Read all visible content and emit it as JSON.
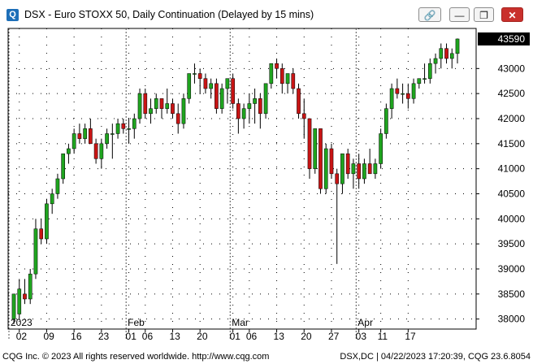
{
  "window": {
    "app_icon_glyph": "Q",
    "title": "DSX - Euro STOXX 50, Daily Continuation (Delayed by 15 mins)",
    "buttons": [
      "link-icon",
      "minimize-icon",
      "restore-icon",
      "close-icon"
    ]
  },
  "colors": {
    "up": "#1fa41f",
    "down": "#c81414",
    "wick": "#000000",
    "price_box": "#000000",
    "price_text": "#ffffff",
    "grid": "#000000"
  },
  "chart_data": {
    "type": "candlestick",
    "instrument": "DSX - Euro STOXX 50, Daily Continuation",
    "last_price_label": "43590",
    "ylim": [
      37800,
      43800
    ],
    "y_ticks": [
      "38000",
      "38500",
      "39000",
      "39500",
      "40000",
      "40500",
      "41000",
      "41500",
      "42000",
      "42500",
      "43000"
    ],
    "x_tick_labels": [
      "02",
      "09",
      "16",
      "23",
      "01",
      "06",
      "13",
      "20",
      "01",
      "06",
      "13",
      "20",
      "27",
      "03",
      "11",
      "17"
    ],
    "month_labels": [
      "2023",
      "Feb",
      "Mar",
      "Apr"
    ],
    "candles": [
      {
        "o": 38000,
        "h": 38500,
        "l": 37900,
        "c": 38500
      },
      {
        "o": 38100,
        "h": 38800,
        "l": 38000,
        "c": 38600
      },
      {
        "o": 38500,
        "h": 38800,
        "l": 38300,
        "c": 38400
      },
      {
        "o": 38400,
        "h": 39000,
        "l": 38300,
        "c": 38900
      },
      {
        "o": 38900,
        "h": 40000,
        "l": 38800,
        "c": 39800
      },
      {
        "o": 39800,
        "h": 40000,
        "l": 39500,
        "c": 39600
      },
      {
        "o": 39600,
        "h": 40400,
        "l": 39500,
        "c": 40300
      },
      {
        "o": 40300,
        "h": 40600,
        "l": 40100,
        "c": 40500
      },
      {
        "o": 40500,
        "h": 40900,
        "l": 40400,
        "c": 40800
      },
      {
        "o": 40800,
        "h": 41300,
        "l": 40700,
        "c": 41300
      },
      {
        "o": 41300,
        "h": 41500,
        "l": 41100,
        "c": 41400
      },
      {
        "o": 41400,
        "h": 41800,
        "l": 41300,
        "c": 41700
      },
      {
        "o": 41700,
        "h": 41900,
        "l": 41500,
        "c": 41600
      },
      {
        "o": 41600,
        "h": 41900,
        "l": 41500,
        "c": 41800
      },
      {
        "o": 41800,
        "h": 42000,
        "l": 41500,
        "c": 41500
      },
      {
        "o": 41500,
        "h": 41600,
        "l": 41100,
        "c": 41200
      },
      {
        "o": 41200,
        "h": 41600,
        "l": 41000,
        "c": 41500
      },
      {
        "o": 41500,
        "h": 41800,
        "l": 41400,
        "c": 41700
      },
      {
        "o": 41700,
        "h": 41900,
        "l": 41200,
        "c": 41700
      },
      {
        "o": 41700,
        "h": 42000,
        "l": 41600,
        "c": 41900
      },
      {
        "o": 41900,
        "h": 42000,
        "l": 41700,
        "c": 41800
      },
      {
        "o": 41800,
        "h": 42000,
        "l": 41500,
        "c": 41800
      },
      {
        "o": 41800,
        "h": 42100,
        "l": 41600,
        "c": 42000
      },
      {
        "o": 42000,
        "h": 42600,
        "l": 41900,
        "c": 42500
      },
      {
        "o": 42500,
        "h": 42600,
        "l": 42000,
        "c": 42100
      },
      {
        "o": 42100,
        "h": 42400,
        "l": 41900,
        "c": 42200
      },
      {
        "o": 42200,
        "h": 42500,
        "l": 42100,
        "c": 42400
      },
      {
        "o": 42400,
        "h": 42400,
        "l": 42000,
        "c": 42200
      },
      {
        "o": 42200,
        "h": 42600,
        "l": 42100,
        "c": 42300
      },
      {
        "o": 42300,
        "h": 42400,
        "l": 42000,
        "c": 42100
      },
      {
        "o": 42100,
        "h": 42300,
        "l": 41700,
        "c": 41900
      },
      {
        "o": 41900,
        "h": 42500,
        "l": 41800,
        "c": 42400
      },
      {
        "o": 42400,
        "h": 42900,
        "l": 42300,
        "c": 42900
      },
      {
        "o": 42900,
        "h": 43100,
        "l": 42700,
        "c": 42900
      },
      {
        "o": 42900,
        "h": 43000,
        "l": 42500,
        "c": 42800
      },
      {
        "o": 42800,
        "h": 42900,
        "l": 42500,
        "c": 42600
      },
      {
        "o": 42600,
        "h": 42800,
        "l": 42400,
        "c": 42700
      },
      {
        "o": 42700,
        "h": 42800,
        "l": 42100,
        "c": 42200
      },
      {
        "o": 42200,
        "h": 42700,
        "l": 42100,
        "c": 42600
      },
      {
        "o": 42600,
        "h": 42800,
        "l": 42300,
        "c": 42800
      },
      {
        "o": 42800,
        "h": 42900,
        "l": 42200,
        "c": 42300
      },
      {
        "o": 42300,
        "h": 42400,
        "l": 41700,
        "c": 42000
      },
      {
        "o": 42000,
        "h": 42300,
        "l": 41800,
        "c": 42200
      },
      {
        "o": 42200,
        "h": 42500,
        "l": 41900,
        "c": 42300
      },
      {
        "o": 42300,
        "h": 42600,
        "l": 41900,
        "c": 42400
      },
      {
        "o": 42400,
        "h": 42500,
        "l": 41800,
        "c": 42100
      },
      {
        "o": 42100,
        "h": 42700,
        "l": 42000,
        "c": 42700
      },
      {
        "o": 42700,
        "h": 43100,
        "l": 42600,
        "c": 43100
      },
      {
        "o": 43100,
        "h": 43200,
        "l": 42800,
        "c": 43000
      },
      {
        "o": 43000,
        "h": 43100,
        "l": 42500,
        "c": 42700
      },
      {
        "o": 42700,
        "h": 42900,
        "l": 42500,
        "c": 42900
      },
      {
        "o": 42900,
        "h": 43000,
        "l": 42500,
        "c": 42600
      },
      {
        "o": 42600,
        "h": 42700,
        "l": 42000,
        "c": 42100
      },
      {
        "o": 42100,
        "h": 42400,
        "l": 41600,
        "c": 42000
      },
      {
        "o": 42000,
        "h": 42000,
        "l": 40800,
        "c": 41000
      },
      {
        "o": 41000,
        "h": 41800,
        "l": 40900,
        "c": 41800
      },
      {
        "o": 41800,
        "h": 41800,
        "l": 40500,
        "c": 40600
      },
      {
        "o": 40600,
        "h": 41500,
        "l": 40500,
        "c": 41400
      },
      {
        "o": 41400,
        "h": 41500,
        "l": 40800,
        "c": 40900
      },
      {
        "o": 40900,
        "h": 41000,
        "l": 39100,
        "c": 40700
      },
      {
        "o": 40700,
        "h": 41300,
        "l": 40500,
        "c": 41300
      },
      {
        "o": 41300,
        "h": 41400,
        "l": 40800,
        "c": 40900
      },
      {
        "o": 40900,
        "h": 41200,
        "l": 40600,
        "c": 41100
      },
      {
        "o": 41100,
        "h": 41300,
        "l": 40600,
        "c": 40800
      },
      {
        "o": 40800,
        "h": 41200,
        "l": 40700,
        "c": 41100
      },
      {
        "o": 41100,
        "h": 41400,
        "l": 40900,
        "c": 40900
      },
      {
        "o": 40900,
        "h": 41200,
        "l": 40800,
        "c": 41100
      },
      {
        "o": 41100,
        "h": 41800,
        "l": 41000,
        "c": 41700
      },
      {
        "o": 41700,
        "h": 42300,
        "l": 41600,
        "c": 42200
      },
      {
        "o": 42200,
        "h": 42700,
        "l": 42000,
        "c": 42600
      },
      {
        "o": 42600,
        "h": 42800,
        "l": 42400,
        "c": 42500
      },
      {
        "o": 42500,
        "h": 42700,
        "l": 42300,
        "c": 42500
      },
      {
        "o": 42500,
        "h": 42700,
        "l": 42200,
        "c": 42400
      },
      {
        "o": 42400,
        "h": 42800,
        "l": 42300,
        "c": 42700
      },
      {
        "o": 42700,
        "h": 42800,
        "l": 42600,
        "c": 42800
      },
      {
        "o": 42800,
        "h": 43100,
        "l": 42700,
        "c": 42800
      },
      {
        "o": 42800,
        "h": 43200,
        "l": 42700,
        "c": 43100
      },
      {
        "o": 43100,
        "h": 43300,
        "l": 42900,
        "c": 43200
      },
      {
        "o": 43200,
        "h": 43500,
        "l": 43000,
        "c": 43400
      },
      {
        "o": 43400,
        "h": 43500,
        "l": 43100,
        "c": 43200
      },
      {
        "o": 43200,
        "h": 43400,
        "l": 43000,
        "c": 43300
      },
      {
        "o": 43300,
        "h": 43600,
        "l": 43100,
        "c": 43590
      }
    ]
  },
  "footer": {
    "left": "CQG Inc. © 2023 All rights reserved worldwide. http://www.cqg.com",
    "right": "DSX,DC | 04/22/2023 17:20:39, CQG 23.6.8054"
  }
}
